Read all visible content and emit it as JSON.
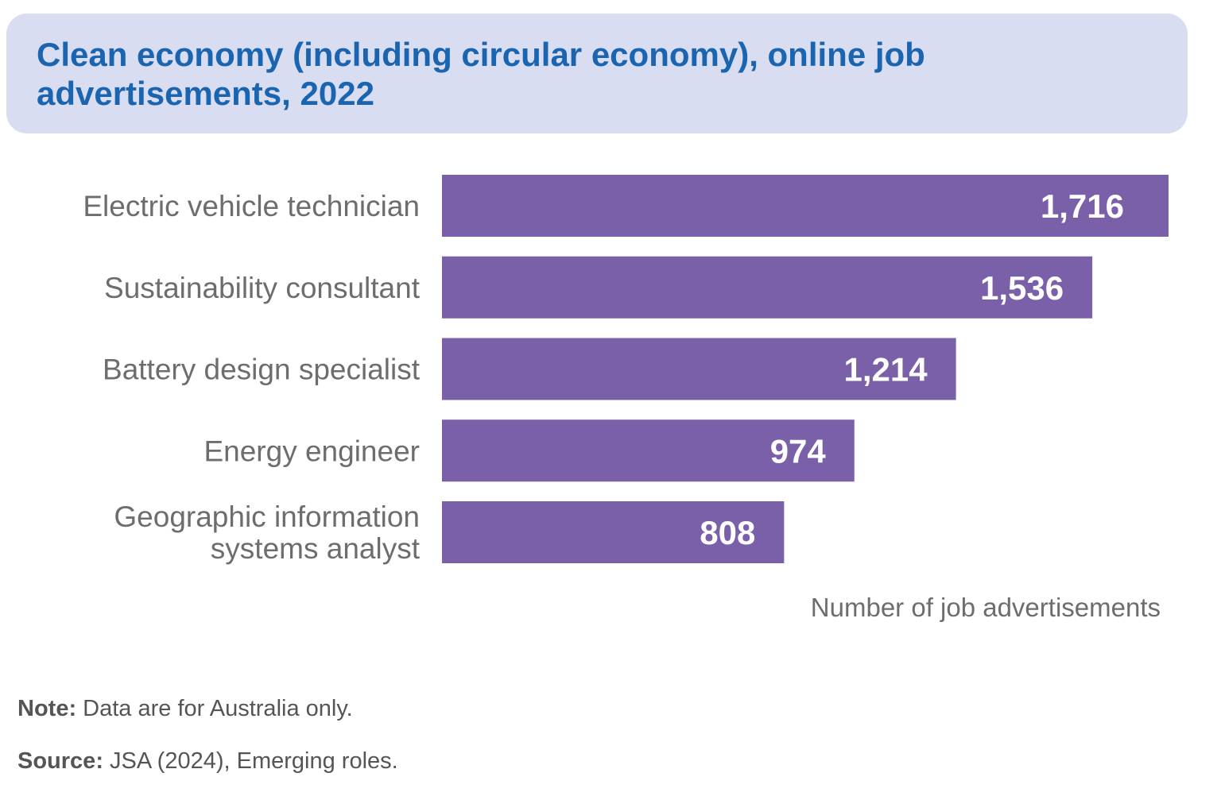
{
  "chart_data": {
    "type": "bar",
    "orientation": "horizontal",
    "title": "Clean economy (including circular economy), online job advertisements, 2022",
    "categories": [
      [
        "Electric vehicle technician"
      ],
      [
        "Sustainability consultant"
      ],
      [
        "Battery design specialist"
      ],
      [
        "Energy engineer"
      ],
      [
        "Geographic information",
        "systems analyst"
      ]
    ],
    "values": [
      1716,
      1536,
      1214,
      974,
      808
    ],
    "data_labels": [
      "1,716",
      "1,536",
      "1,214",
      "974",
      "808"
    ],
    "xlabel": "Number of job advertisements",
    "xlim": [
      0,
      1716
    ],
    "grid": false,
    "bar_color": "#7960a9"
  },
  "notes": {
    "note_label": "Note:",
    "note_text": " Data are for Australia only.",
    "source_label": "Source:",
    "source_text": " JSA (2024), Emerging roles."
  },
  "colors": {
    "title_bg": "#d9ddf1",
    "title_text": "#1a64b0"
  }
}
